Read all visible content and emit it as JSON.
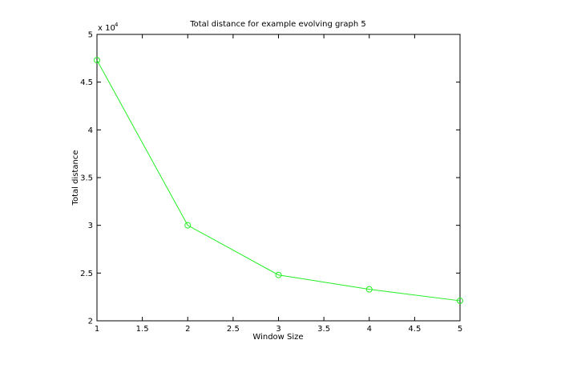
{
  "chart_data": {
    "type": "line",
    "title": "Total distance for example evolving graph 5",
    "x_label": "Window Size",
    "y_label": "Total distance",
    "y_multiplier": {
      "base": "x 10",
      "exponent": "4"
    },
    "x": [
      1,
      2,
      3,
      4,
      5
    ],
    "series": [
      {
        "name": "Total distance",
        "color": "#22ee22",
        "values": [
          4.73,
          3.0,
          2.48,
          2.33,
          2.21
        ]
      }
    ],
    "marker": "circle",
    "xlim": [
      1,
      5
    ],
    "xticks": [
      1,
      1.5,
      2,
      2.5,
      3,
      3.5,
      4,
      4.5,
      5
    ],
    "ylim": [
      2,
      5
    ],
    "yticks": [
      2,
      2.5,
      3,
      3.5,
      4,
      4.5,
      5
    ],
    "grid": false
  }
}
